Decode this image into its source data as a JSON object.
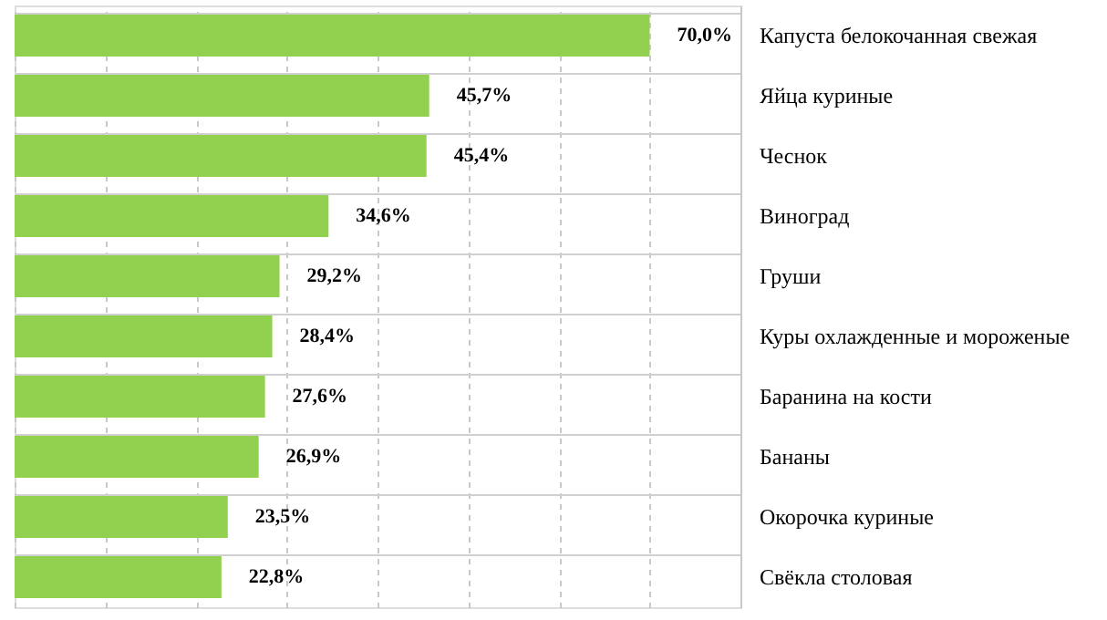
{
  "chart_data": {
    "type": "bar",
    "orientation": "horizontal",
    "categories": [
      "Капуста белокочанная свежая",
      "Яйца куриные",
      "Чеснок",
      "Виноград",
      "Груши",
      "Куры охлажденные и мороженые",
      "Баранина на кости",
      "Бананы",
      "Окорочка куриные",
      "Свёкла столовая"
    ],
    "values": [
      70.0,
      45.7,
      45.4,
      34.6,
      29.2,
      28.4,
      27.6,
      26.9,
      23.5,
      22.8
    ],
    "value_labels": [
      "70,0%",
      "45,7%",
      "45,4%",
      "34,6%",
      "29,2%",
      "28,4%",
      "27,6%",
      "26,9%",
      "23,5%",
      "22,8%"
    ],
    "color": "#92d050",
    "xlim": [
      0,
      80
    ],
    "xticks": [
      {
        "value": 0,
        "label": null
      },
      {
        "value": 10,
        "label": null
      },
      {
        "value": 20,
        "label": null
      },
      {
        "value": 30,
        "label": null
      },
      {
        "value": 40,
        "label": null
      },
      {
        "value": 50,
        "label": null
      },
      {
        "value": 60,
        "label": null
      },
      {
        "value": 70,
        "label": null
      },
      {
        "value": 80,
        "label": null
      }
    ],
    "tick_labels": "y",
    "grid": true
  }
}
